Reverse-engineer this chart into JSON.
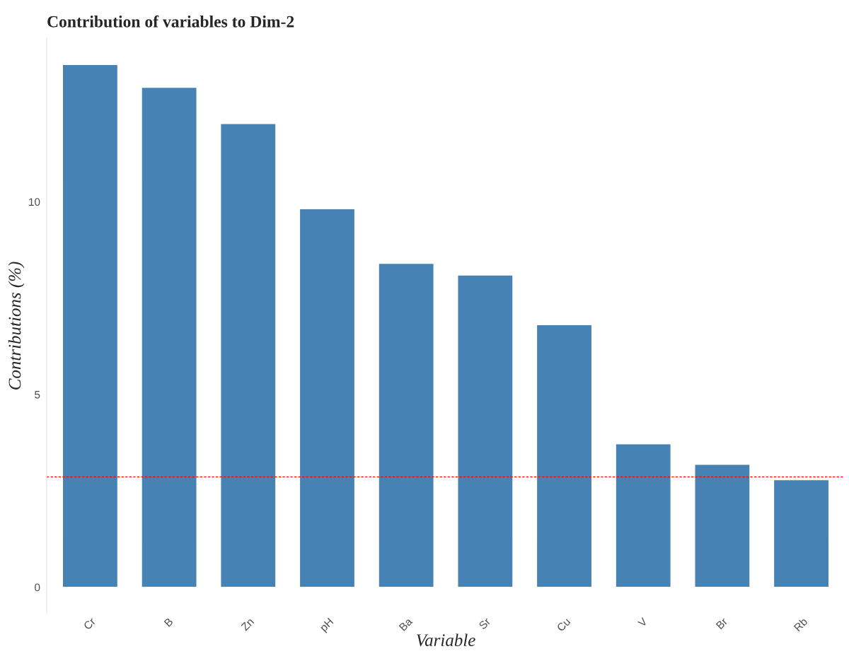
{
  "chart_data": {
    "type": "bar",
    "title": "Contribution of variables to Dim-2",
    "xlabel": "Variable",
    "ylabel": "Contributions (%)",
    "categories": [
      "Cr",
      "B",
      "Zn",
      "pH",
      "Ba",
      "Sr",
      "Cu",
      "V",
      "Br",
      "Rb"
    ],
    "values": [
      13.56,
      12.97,
      12.03,
      9.82,
      8.4,
      8.1,
      6.81,
      3.72,
      3.19,
      2.79
    ],
    "color": "#4682b4",
    "ylim": [
      -0.68,
      14.24
    ],
    "yticks": [
      0,
      5,
      10
    ],
    "grid": false,
    "ref_lines": [
      {
        "axis": "y",
        "value": 2.86,
        "color": "#ff0000",
        "line_style": "dashed"
      }
    ]
  }
}
